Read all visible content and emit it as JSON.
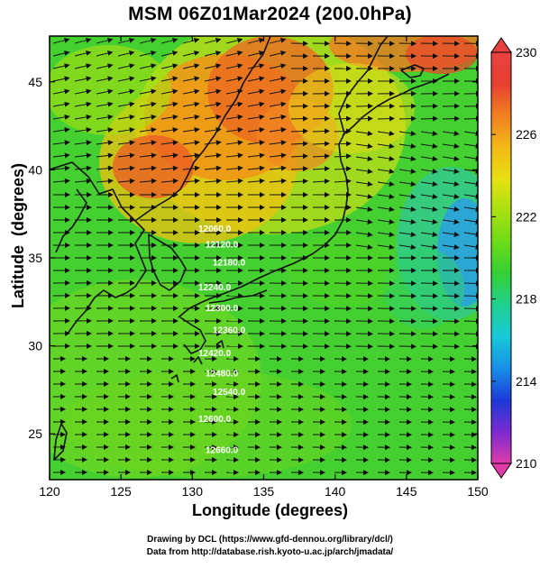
{
  "title": "MSM 06Z01Mar2024 (200.0hPa)",
  "x_axis": {
    "label": "Longitude (degrees)",
    "range": [
      120,
      150
    ],
    "ticks": [
      "120",
      "125",
      "130",
      "135",
      "140",
      "145",
      "150"
    ]
  },
  "y_axis": {
    "label": "Latitude  (degrees)",
    "range": [
      22.4,
      47.6
    ],
    "ticks": [
      "25",
      "30",
      "35",
      "40",
      "45"
    ]
  },
  "colorbar": {
    "ticks": [
      "230",
      "226",
      "222",
      "218",
      "214",
      "210"
    ],
    "range": [
      210,
      230
    ],
    "colors": [
      "#e03ca8",
      "#7a2ad0",
      "#1a3ad8",
      "#1890e8",
      "#18c8d8",
      "#20d090",
      "#34d034",
      "#6cdc18",
      "#a8e010",
      "#e6e010",
      "#f4b818",
      "#f08020",
      "#e84030",
      "#e84040"
    ]
  },
  "contours": [
    {
      "label": "12060.0",
      "lat": 36.6
    },
    {
      "label": "12120.0",
      "lat": 35.6
    },
    {
      "label": "12180.0",
      "lat": 34.4
    },
    {
      "label": "12240.0",
      "lat": 33.0
    },
    {
      "label": "12300.0",
      "lat": 31.9
    },
    {
      "label": "12360.0",
      "lat": 30.8
    },
    {
      "label": "12420.0",
      "lat": 29.6
    },
    {
      "label": "12480.0",
      "lat": 28.4
    },
    {
      "label": "12540.0",
      "lat": 27.2
    },
    {
      "label": "12600.0",
      "lat": 25.6
    },
    {
      "label": "12660.0",
      "lat": 23.9
    }
  ],
  "credits": {
    "line1": "Drawing by DCL (https://www.gfd-dennou.org/library/dcl/)",
    "line2": "Data from http://database.rish.kyoto-u.ac.jp/arch/jmadata/"
  }
}
